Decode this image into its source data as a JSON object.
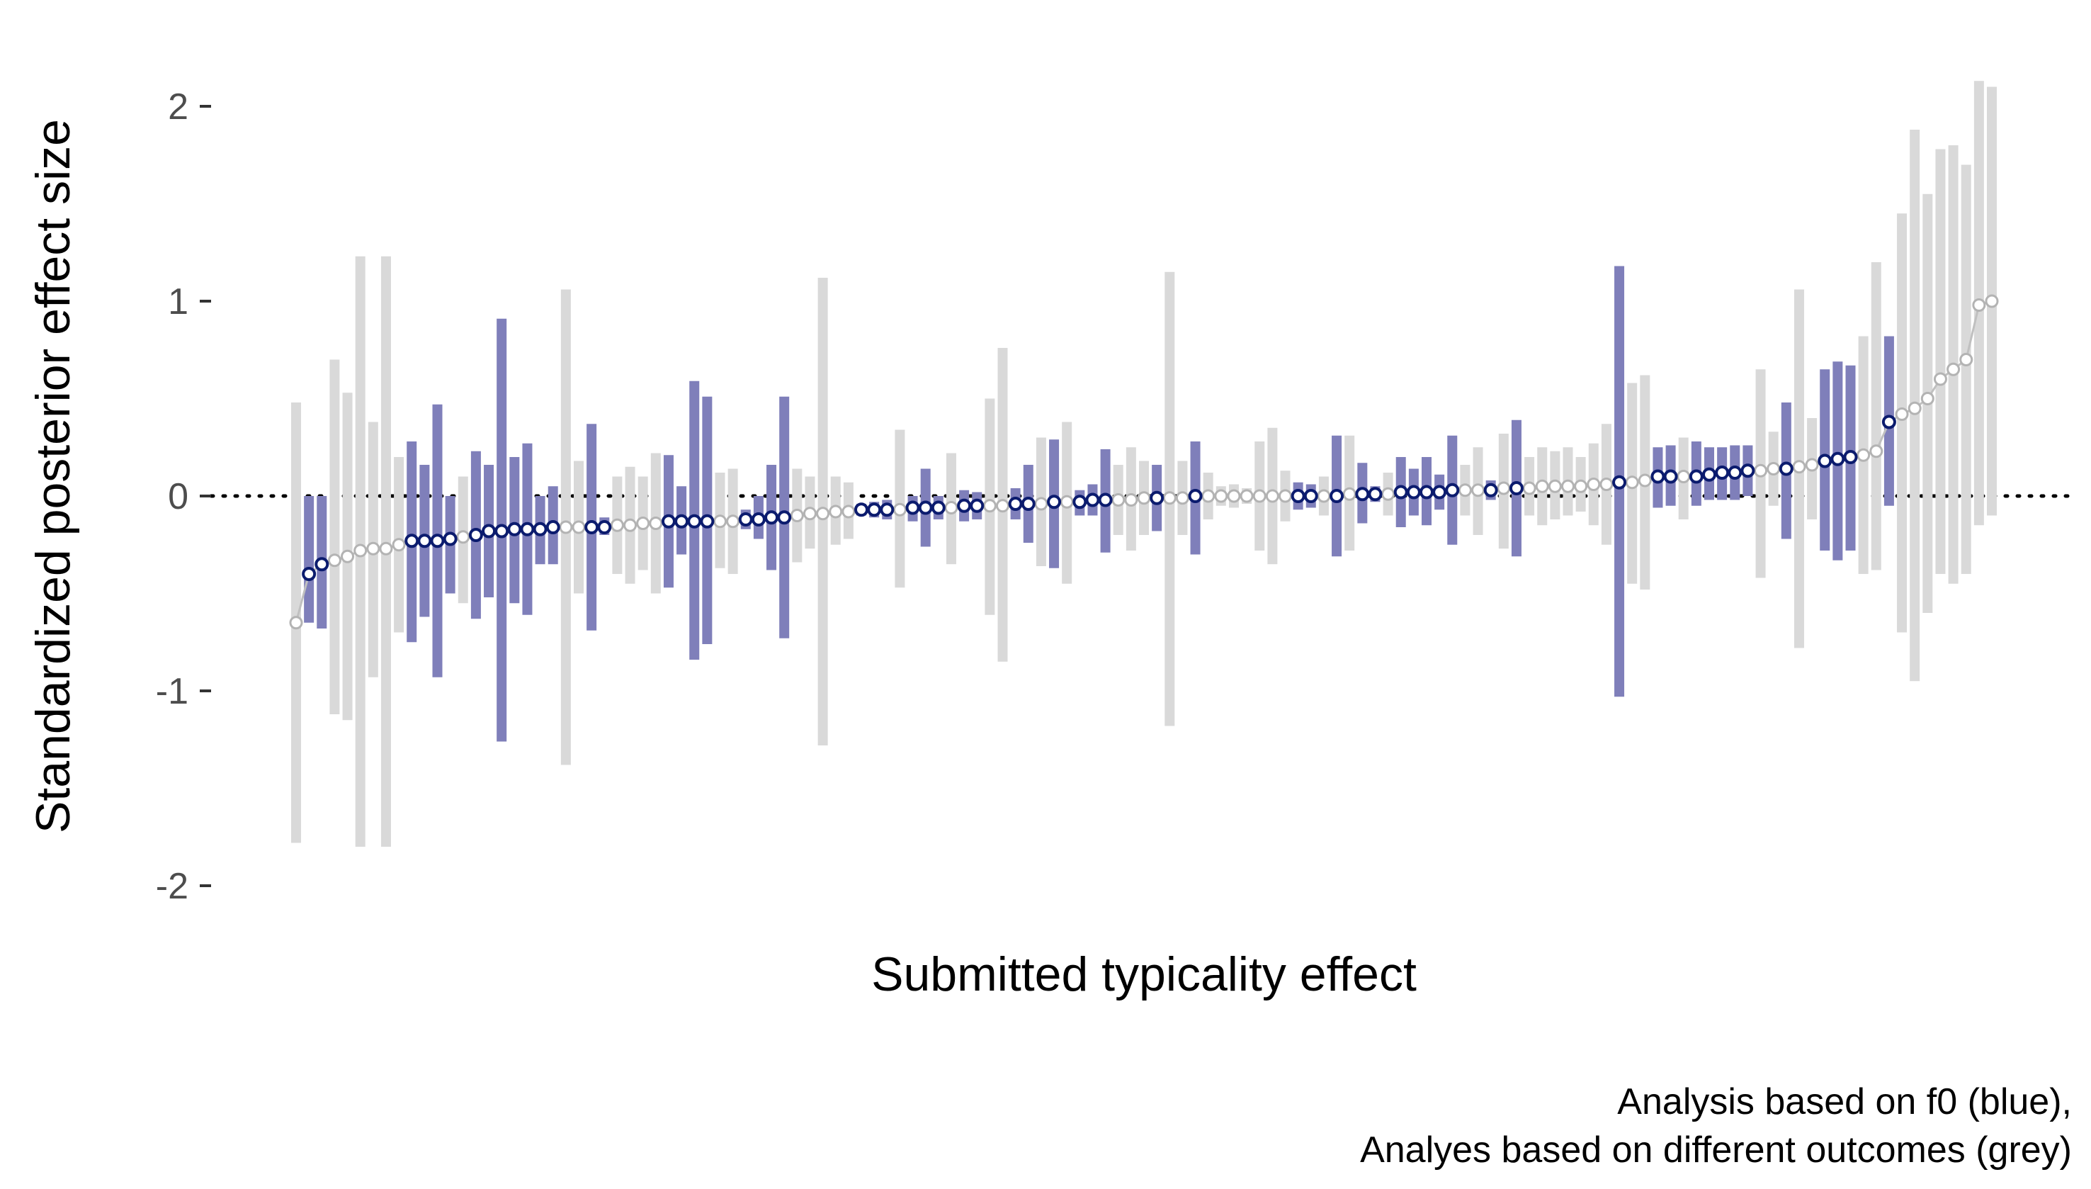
{
  "chart_data": {
    "type": "scatter",
    "title": "",
    "xlabel": "Submitted typicality effect",
    "ylabel": "Standardized posterior effect size",
    "ylim": [
      -2.4,
      2.2
    ],
    "yticks": [
      "2",
      "1",
      "0",
      "-1",
      "-2"
    ],
    "ytick_values": [
      2,
      1,
      0,
      -1,
      -2
    ],
    "reference_line": {
      "y": 0,
      "style": "dotted"
    },
    "grid": false,
    "legend": "none",
    "caption_lines": [
      "Analysis based on f0 (blue),",
      "Analyes based on different outcomes (grey)"
    ],
    "colors": {
      "f0_interval": "#7f7fba",
      "f0_point_stroke": "#0b1b6e",
      "other_interval": "#d9d9d9",
      "other_point_stroke": "#b3b3b3",
      "connector": "#c0c0c0"
    },
    "series": [
      {
        "name": "f0",
        "kind": "pointrange",
        "points": [
          {
            "rank": 2,
            "estimate": -0.4,
            "lower": -0.65,
            "upper": 0.0
          },
          {
            "rank": 3,
            "estimate": -0.35,
            "lower": -0.68,
            "upper": 0.0
          },
          {
            "rank": 10,
            "estimate": -0.23,
            "lower": -0.75,
            "upper": 0.28
          },
          {
            "rank": 11,
            "estimate": -0.23,
            "lower": -0.62,
            "upper": 0.16
          },
          {
            "rank": 12,
            "estimate": -0.23,
            "lower": -0.93,
            "upper": 0.47
          },
          {
            "rank": 13,
            "estimate": -0.22,
            "lower": -0.5,
            "upper": 0.0
          },
          {
            "rank": 15,
            "estimate": -0.2,
            "lower": -0.63,
            "upper": 0.23
          },
          {
            "rank": 16,
            "estimate": -0.18,
            "lower": -0.52,
            "upper": 0.16
          },
          {
            "rank": 17,
            "estimate": -0.18,
            "lower": -1.26,
            "upper": 0.91
          },
          {
            "rank": 18,
            "estimate": -0.17,
            "lower": -0.55,
            "upper": 0.2
          },
          {
            "rank": 19,
            "estimate": -0.17,
            "lower": -0.61,
            "upper": 0.27
          },
          {
            "rank": 20,
            "estimate": -0.17,
            "lower": -0.35,
            "upper": 0.0
          },
          {
            "rank": 21,
            "estimate": -0.16,
            "lower": -0.35,
            "upper": 0.05
          },
          {
            "rank": 24,
            "estimate": -0.16,
            "lower": -0.69,
            "upper": 0.37
          },
          {
            "rank": 25,
            "estimate": -0.16,
            "lower": -0.2,
            "upper": -0.11
          },
          {
            "rank": 30,
            "estimate": -0.13,
            "lower": -0.47,
            "upper": 0.21
          },
          {
            "rank": 31,
            "estimate": -0.13,
            "lower": -0.3,
            "upper": 0.05
          },
          {
            "rank": 32,
            "estimate": -0.13,
            "lower": -0.84,
            "upper": 0.59
          },
          {
            "rank": 33,
            "estimate": -0.13,
            "lower": -0.76,
            "upper": 0.51
          },
          {
            "rank": 36,
            "estimate": -0.12,
            "lower": -0.17,
            "upper": -0.07
          },
          {
            "rank": 37,
            "estimate": -0.12,
            "lower": -0.22,
            "upper": 0.0
          },
          {
            "rank": 38,
            "estimate": -0.11,
            "lower": -0.38,
            "upper": 0.16
          },
          {
            "rank": 39,
            "estimate": -0.11,
            "lower": -0.73,
            "upper": 0.51
          },
          {
            "rank": 45,
            "estimate": -0.07,
            "lower": -0.1,
            "upper": -0.04
          },
          {
            "rank": 46,
            "estimate": -0.07,
            "lower": -0.11,
            "upper": -0.03
          },
          {
            "rank": 47,
            "estimate": -0.07,
            "lower": -0.12,
            "upper": -0.02
          },
          {
            "rank": 49,
            "estimate": -0.06,
            "lower": -0.13,
            "upper": 0.0
          },
          {
            "rank": 50,
            "estimate": -0.06,
            "lower": -0.26,
            "upper": 0.14
          },
          {
            "rank": 51,
            "estimate": -0.06,
            "lower": -0.12,
            "upper": 0.0
          },
          {
            "rank": 53,
            "estimate": -0.05,
            "lower": -0.13,
            "upper": 0.03
          },
          {
            "rank": 54,
            "estimate": -0.05,
            "lower": -0.12,
            "upper": 0.02
          },
          {
            "rank": 57,
            "estimate": -0.04,
            "lower": -0.12,
            "upper": 0.04
          },
          {
            "rank": 58,
            "estimate": -0.04,
            "lower": -0.24,
            "upper": 0.16
          },
          {
            "rank": 60,
            "estimate": -0.03,
            "lower": -0.37,
            "upper": 0.29
          },
          {
            "rank": 62,
            "estimate": -0.03,
            "lower": -0.1,
            "upper": 0.03
          },
          {
            "rank": 63,
            "estimate": -0.02,
            "lower": -0.1,
            "upper": 0.06
          },
          {
            "rank": 64,
            "estimate": -0.02,
            "lower": -0.29,
            "upper": 0.24
          },
          {
            "rank": 68,
            "estimate": -0.01,
            "lower": -0.18,
            "upper": 0.16
          },
          {
            "rank": 71,
            "estimate": 0.0,
            "lower": -0.3,
            "upper": 0.28
          },
          {
            "rank": 79,
            "estimate": 0.0,
            "lower": -0.07,
            "upper": 0.07
          },
          {
            "rank": 80,
            "estimate": 0.0,
            "lower": -0.06,
            "upper": 0.06
          },
          {
            "rank": 82,
            "estimate": 0.0,
            "lower": -0.31,
            "upper": 0.31
          },
          {
            "rank": 84,
            "estimate": 0.01,
            "lower": -0.14,
            "upper": 0.17
          },
          {
            "rank": 85,
            "estimate": 0.01,
            "lower": -0.03,
            "upper": 0.05
          },
          {
            "rank": 87,
            "estimate": 0.02,
            "lower": -0.16,
            "upper": 0.2
          },
          {
            "rank": 88,
            "estimate": 0.02,
            "lower": -0.1,
            "upper": 0.14
          },
          {
            "rank": 89,
            "estimate": 0.02,
            "lower": -0.15,
            "upper": 0.2
          },
          {
            "rank": 90,
            "estimate": 0.02,
            "lower": -0.07,
            "upper": 0.11
          },
          {
            "rank": 91,
            "estimate": 0.03,
            "lower": -0.25,
            "upper": 0.31
          },
          {
            "rank": 94,
            "estimate": 0.03,
            "lower": -0.02,
            "upper": 0.08
          },
          {
            "rank": 96,
            "estimate": 0.04,
            "lower": -0.31,
            "upper": 0.39
          },
          {
            "rank": 104,
            "estimate": 0.07,
            "lower": -1.03,
            "upper": 1.18
          },
          {
            "rank": 107,
            "estimate": 0.1,
            "lower": -0.06,
            "upper": 0.25
          },
          {
            "rank": 108,
            "estimate": 0.1,
            "lower": -0.05,
            "upper": 0.26
          },
          {
            "rank": 110,
            "estimate": 0.1,
            "lower": -0.05,
            "upper": 0.28
          },
          {
            "rank": 111,
            "estimate": 0.11,
            "lower": -0.02,
            "upper": 0.25
          },
          {
            "rank": 112,
            "estimate": 0.12,
            "lower": -0.02,
            "upper": 0.25
          },
          {
            "rank": 113,
            "estimate": 0.12,
            "lower": -0.02,
            "upper": 0.26
          },
          {
            "rank": 114,
            "estimate": 0.13,
            "lower": 0.0,
            "upper": 0.26
          },
          {
            "rank": 117,
            "estimate": 0.14,
            "lower": -0.22,
            "upper": 0.48
          },
          {
            "rank": 120,
            "estimate": 0.18,
            "lower": -0.28,
            "upper": 0.65
          },
          {
            "rank": 121,
            "estimate": 0.19,
            "lower": -0.33,
            "upper": 0.69
          },
          {
            "rank": 122,
            "estimate": 0.2,
            "lower": -0.28,
            "upper": 0.67
          },
          {
            "rank": 125,
            "estimate": 0.38,
            "lower": -0.05,
            "upper": 0.82
          }
        ]
      },
      {
        "name": "different outcomes",
        "kind": "pointrange",
        "points": [
          {
            "rank": 1,
            "estimate": -0.65,
            "lower": -1.78,
            "upper": 0.48
          },
          {
            "rank": 4,
            "estimate": -0.33,
            "lower": -1.12,
            "upper": 0.7
          },
          {
            "rank": 5,
            "estimate": -0.31,
            "lower": -1.15,
            "upper": 0.53
          },
          {
            "rank": 6,
            "estimate": -0.28,
            "lower": -1.8,
            "upper": 1.23
          },
          {
            "rank": 7,
            "estimate": -0.27,
            "lower": -0.93,
            "upper": 0.38
          },
          {
            "rank": 8,
            "estimate": -0.27,
            "lower": -1.8,
            "upper": 1.23
          },
          {
            "rank": 9,
            "estimate": -0.25,
            "lower": -0.7,
            "upper": 0.2
          },
          {
            "rank": 14,
            "estimate": -0.21,
            "lower": -0.55,
            "upper": 0.1
          },
          {
            "rank": 22,
            "estimate": -0.16,
            "lower": -1.38,
            "upper": 1.06
          },
          {
            "rank": 23,
            "estimate": -0.16,
            "lower": -0.5,
            "upper": 0.18
          },
          {
            "rank": 26,
            "estimate": -0.15,
            "lower": -0.4,
            "upper": 0.1
          },
          {
            "rank": 27,
            "estimate": -0.15,
            "lower": -0.45,
            "upper": 0.15
          },
          {
            "rank": 28,
            "estimate": -0.14,
            "lower": -0.38,
            "upper": 0.1
          },
          {
            "rank": 29,
            "estimate": -0.14,
            "lower": -0.5,
            "upper": 0.22
          },
          {
            "rank": 34,
            "estimate": -0.13,
            "lower": -0.37,
            "upper": 0.12
          },
          {
            "rank": 35,
            "estimate": -0.13,
            "lower": -0.4,
            "upper": 0.14
          },
          {
            "rank": 40,
            "estimate": -0.1,
            "lower": -0.34,
            "upper": 0.14
          },
          {
            "rank": 41,
            "estimate": -0.09,
            "lower": -0.27,
            "upper": 0.1
          },
          {
            "rank": 42,
            "estimate": -0.09,
            "lower": -1.28,
            "upper": 1.12
          },
          {
            "rank": 43,
            "estimate": -0.08,
            "lower": -0.25,
            "upper": 0.1
          },
          {
            "rank": 44,
            "estimate": -0.08,
            "lower": -0.22,
            "upper": 0.07
          },
          {
            "rank": 48,
            "estimate": -0.07,
            "lower": -0.47,
            "upper": 0.34
          },
          {
            "rank": 52,
            "estimate": -0.06,
            "lower": -0.35,
            "upper": 0.22
          },
          {
            "rank": 55,
            "estimate": -0.05,
            "lower": -0.61,
            "upper": 0.5
          },
          {
            "rank": 56,
            "estimate": -0.05,
            "lower": -0.85,
            "upper": 0.76
          },
          {
            "rank": 59,
            "estimate": -0.04,
            "lower": -0.36,
            "upper": 0.3
          },
          {
            "rank": 61,
            "estimate": -0.03,
            "lower": -0.45,
            "upper": 0.38
          },
          {
            "rank": 65,
            "estimate": -0.02,
            "lower": -0.2,
            "upper": 0.16
          },
          {
            "rank": 66,
            "estimate": -0.02,
            "lower": -0.28,
            "upper": 0.25
          },
          {
            "rank": 67,
            "estimate": -0.01,
            "lower": -0.2,
            "upper": 0.18
          },
          {
            "rank": 69,
            "estimate": -0.01,
            "lower": -1.18,
            "upper": 1.15
          },
          {
            "rank": 70,
            "estimate": -0.01,
            "lower": -0.2,
            "upper": 0.18
          },
          {
            "rank": 72,
            "estimate": 0.0,
            "lower": -0.12,
            "upper": 0.12
          },
          {
            "rank": 73,
            "estimate": 0.0,
            "lower": -0.05,
            "upper": 0.05
          },
          {
            "rank": 74,
            "estimate": 0.0,
            "lower": -0.06,
            "upper": 0.06
          },
          {
            "rank": 75,
            "estimate": 0.0,
            "lower": -0.04,
            "upper": 0.04
          },
          {
            "rank": 76,
            "estimate": 0.0,
            "lower": -0.28,
            "upper": 0.28
          },
          {
            "rank": 77,
            "estimate": 0.0,
            "lower": -0.35,
            "upper": 0.35
          },
          {
            "rank": 78,
            "estimate": 0.0,
            "lower": -0.13,
            "upper": 0.13
          },
          {
            "rank": 81,
            "estimate": 0.0,
            "lower": -0.1,
            "upper": 0.1
          },
          {
            "rank": 83,
            "estimate": 0.01,
            "lower": -0.28,
            "upper": 0.31
          },
          {
            "rank": 86,
            "estimate": 0.01,
            "lower": -0.1,
            "upper": 0.12
          },
          {
            "rank": 92,
            "estimate": 0.03,
            "lower": -0.1,
            "upper": 0.16
          },
          {
            "rank": 93,
            "estimate": 0.03,
            "lower": -0.2,
            "upper": 0.25
          },
          {
            "rank": 95,
            "estimate": 0.04,
            "lower": -0.27,
            "upper": 0.32
          },
          {
            "rank": 97,
            "estimate": 0.04,
            "lower": -0.1,
            "upper": 0.2
          },
          {
            "rank": 98,
            "estimate": 0.05,
            "lower": -0.15,
            "upper": 0.25
          },
          {
            "rank": 99,
            "estimate": 0.05,
            "lower": -0.12,
            "upper": 0.23
          },
          {
            "rank": 100,
            "estimate": 0.05,
            "lower": -0.1,
            "upper": 0.25
          },
          {
            "rank": 101,
            "estimate": 0.05,
            "lower": -0.08,
            "upper": 0.2
          },
          {
            "rank": 102,
            "estimate": 0.06,
            "lower": -0.15,
            "upper": 0.27
          },
          {
            "rank": 103,
            "estimate": 0.06,
            "lower": -0.25,
            "upper": 0.37
          },
          {
            "rank": 105,
            "estimate": 0.07,
            "lower": -0.45,
            "upper": 0.58
          },
          {
            "rank": 106,
            "estimate": 0.08,
            "lower": -0.48,
            "upper": 0.62
          },
          {
            "rank": 109,
            "estimate": 0.1,
            "lower": -0.12,
            "upper": 0.3
          },
          {
            "rank": 115,
            "estimate": 0.13,
            "lower": -0.42,
            "upper": 0.65
          },
          {
            "rank": 116,
            "estimate": 0.14,
            "lower": -0.05,
            "upper": 0.33
          },
          {
            "rank": 118,
            "estimate": 0.15,
            "lower": -0.78,
            "upper": 1.06
          },
          {
            "rank": 119,
            "estimate": 0.16,
            "lower": -0.12,
            "upper": 0.4
          },
          {
            "rank": 123,
            "estimate": 0.21,
            "lower": -0.4,
            "upper": 0.82
          },
          {
            "rank": 124,
            "estimate": 0.23,
            "lower": -0.38,
            "upper": 1.2
          },
          {
            "rank": 126,
            "estimate": 0.42,
            "lower": -0.7,
            "upper": 1.45
          },
          {
            "rank": 127,
            "estimate": 0.45,
            "lower": -0.95,
            "upper": 1.88
          },
          {
            "rank": 128,
            "estimate": 0.5,
            "lower": -0.6,
            "upper": 1.55
          },
          {
            "rank": 129,
            "estimate": 0.6,
            "lower": -0.4,
            "upper": 1.78
          },
          {
            "rank": 130,
            "estimate": 0.65,
            "lower": -0.45,
            "upper": 1.8
          },
          {
            "rank": 131,
            "estimate": 0.7,
            "lower": -0.4,
            "upper": 1.7
          },
          {
            "rank": 132,
            "estimate": 0.98,
            "lower": -0.15,
            "upper": 2.13
          },
          {
            "rank": 133,
            "estimate": 1.0,
            "lower": -0.1,
            "upper": 2.1
          }
        ]
      }
    ]
  }
}
